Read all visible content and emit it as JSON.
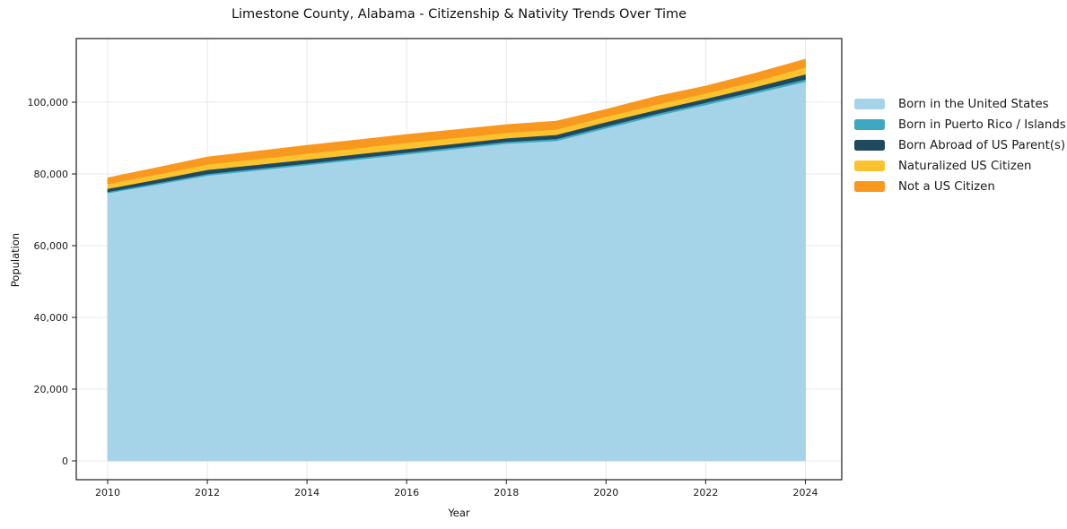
{
  "chart_data": {
    "type": "area",
    "stacked": true,
    "title": "Limestone County, Alabama - Citizenship & Nativity Trends Over Time",
    "xlabel": "Year",
    "ylabel": "Population",
    "x": [
      2010,
      2011,
      2012,
      2013,
      2014,
      2015,
      2016,
      2017,
      2018,
      2019,
      2020,
      2021,
      2022,
      2023,
      2024
    ],
    "series": [
      {
        "name": "Born in the United States",
        "color": "#a5d3e8",
        "values": [
          74700,
          77100,
          79600,
          81050,
          82500,
          84000,
          85500,
          87000,
          88500,
          89250,
          92750,
          96200,
          99300,
          102500,
          105750
        ]
      },
      {
        "name": "Born in Puerto Rico / Islands",
        "color": "#3ea8c3",
        "values": [
          350,
          400,
          450,
          450,
          450,
          475,
          500,
          500,
          500,
          550,
          575,
          550,
          600,
          600,
          675
        ]
      },
      {
        "name": "Born Abroad of US Parent(s)",
        "color": "#1f4a5e",
        "values": [
          850,
          1000,
          1150,
          1100,
          1075,
          1050,
          1000,
          1000,
          1000,
          1150,
          1175,
          1100,
          1100,
          1175,
          1400
        ]
      },
      {
        "name": "Naturalized US Citizen",
        "color": "#fcc32e",
        "values": [
          1350,
          1425,
          1500,
          1600,
          1675,
          1700,
          1750,
          1600,
          1500,
          1500,
          1500,
          1500,
          1500,
          1575,
          1925
        ]
      },
      {
        "name": "Not a US Citizen",
        "color": "#f8981f",
        "values": [
          1650,
          1850,
          2000,
          2150,
          2250,
          2250,
          2250,
          2250,
          2250,
          2250,
          2000,
          2250,
          2000,
          2250,
          2250
        ]
      }
    ],
    "xticks": [
      2010,
      2012,
      2014,
      2016,
      2018,
      2020,
      2022,
      2024
    ],
    "xtick_labels": [
      "2010",
      "2012",
      "2014",
      "2016",
      "2018",
      "2020",
      "2022",
      "2024"
    ],
    "yticks": [
      0,
      20000,
      40000,
      60000,
      80000,
      100000
    ],
    "ytick_labels": [
      "0",
      "20,000",
      "40,000",
      "60,000",
      "80,000",
      "100,000"
    ],
    "xlim": [
      2009.37,
      2024.73
    ],
    "ylim": [
      -5250,
      117750
    ],
    "grid": true,
    "grid_color": "#e8e8e8",
    "axis_color": "#1a1a1a",
    "legend_position": "right-outside"
  }
}
